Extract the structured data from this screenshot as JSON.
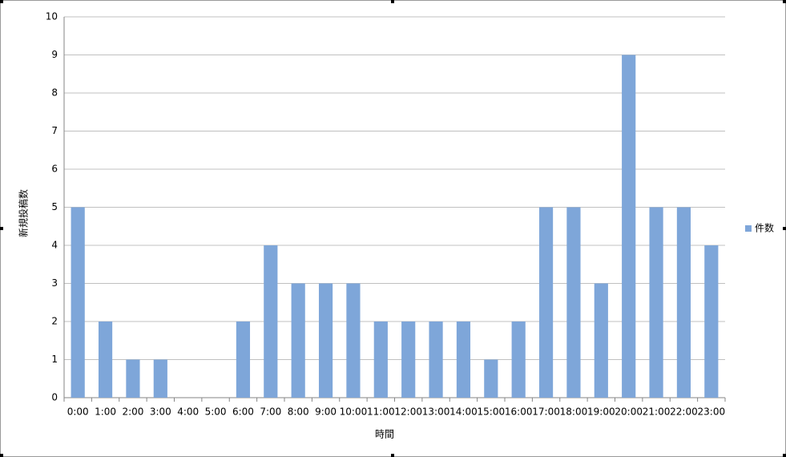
{
  "chart_data": {
    "type": "bar",
    "y_label": "新規投稿数",
    "x_label": "時間",
    "categories": [
      "0:00",
      "1:00",
      "2:00",
      "3:00",
      "4:00",
      "5:00",
      "6:00",
      "7:00",
      "8:00",
      "9:00",
      "10:00",
      "11:00",
      "12:00",
      "13:00",
      "14:00",
      "15:00",
      "16:00",
      "17:00",
      "18:00",
      "19:00",
      "20:00",
      "21:00",
      "22:00",
      "23:00"
    ],
    "series": [
      {
        "name": "件数",
        "color": "#7ea6d9",
        "values": [
          5,
          2,
          1,
          1,
          0,
          0,
          2,
          4,
          3,
          3,
          3,
          2,
          2,
          2,
          2,
          1,
          2,
          5,
          5,
          3,
          9,
          5,
          5,
          4
        ]
      }
    ],
    "ylim": [
      0,
      10
    ],
    "yticks": [
      0,
      1,
      2,
      3,
      4,
      5,
      6,
      7,
      8,
      9,
      10
    ],
    "grid": true,
    "legend": "right"
  }
}
